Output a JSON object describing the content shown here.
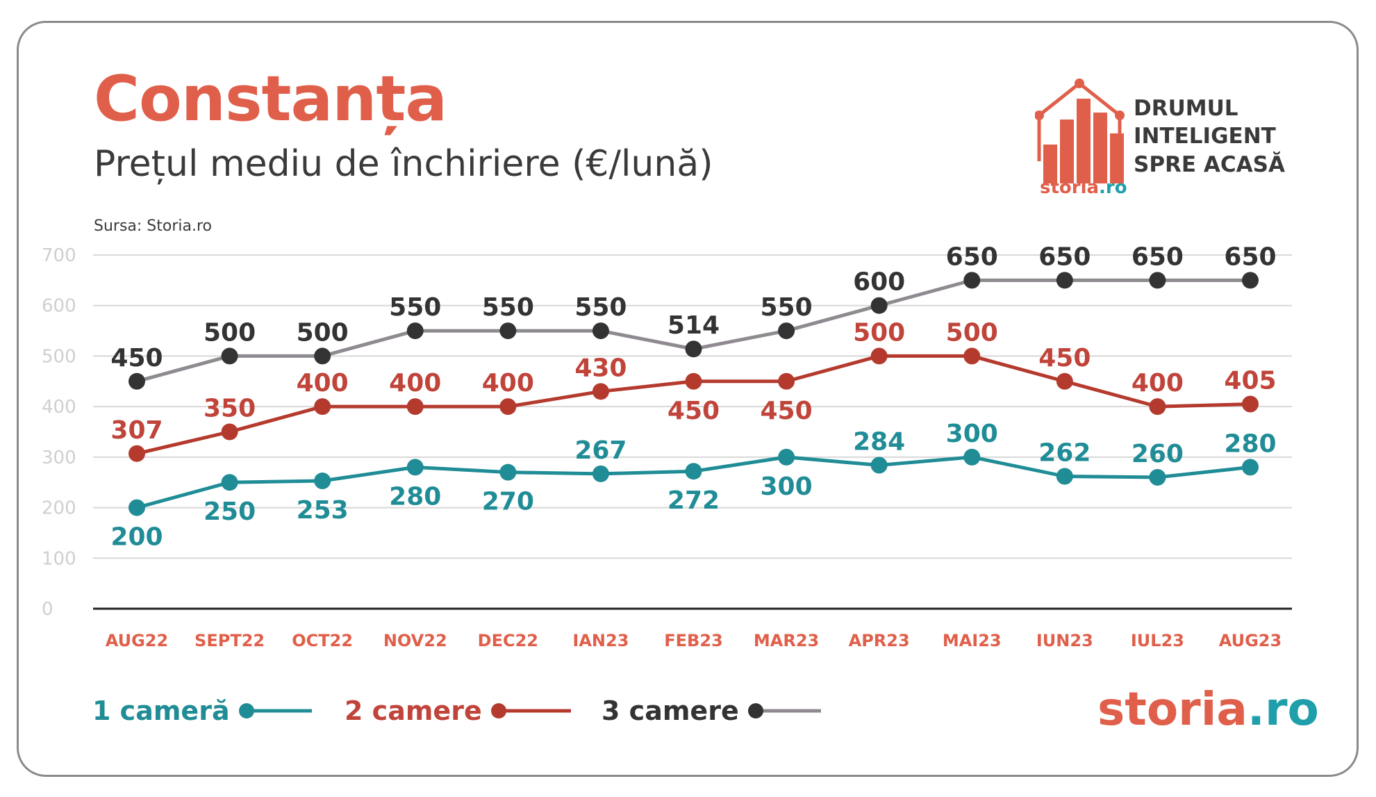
{
  "header": {
    "title": "Constanța",
    "subtitle": "Prețul mediu de închiriere (€/lună)",
    "source": "Sursa:  Storia.ro"
  },
  "logo": {
    "tagline": [
      "DRUMUL",
      "INTELIGENT",
      "SPRE ACASĂ"
    ],
    "small_brand": "storia",
    "small_brand_suffix": ".ro",
    "icon": "house-bar-chart-icon"
  },
  "brand": {
    "name": "storia",
    "suffix": ".ro"
  },
  "colors": {
    "accent": "#e05f4a",
    "teal": "#1f8c96",
    "red": "#b53a2e",
    "dark": "#3a3a3a",
    "gray_line": "#8e8a90",
    "grid": "#d8d8d8",
    "axis_label": "#cfcfcf"
  },
  "chart_data": {
    "type": "line",
    "categories": [
      "AUG22",
      "SEPT22",
      "OCT22",
      "NOV22",
      "DEC22",
      "IAN23",
      "FEB23",
      "MAR23",
      "APR23",
      "MAI23",
      "IUN23",
      "IUL23",
      "AUG23"
    ],
    "ylim": [
      0,
      700
    ],
    "yticks": [
      0,
      100,
      200,
      300,
      400,
      500,
      600,
      700
    ],
    "grid": true,
    "legend_position": "bottom-left",
    "series": [
      {
        "name": "1 cameră",
        "color": "#1f8c96",
        "line_color": "#1f8c96",
        "label_color": "#1f8c96",
        "values": [
          200,
          250,
          253,
          280,
          270,
          267,
          272,
          300,
          284,
          300,
          262,
          260,
          280
        ],
        "label_pos": [
          "below",
          "below",
          "below",
          "below",
          "below",
          "above",
          "below",
          "below",
          "above",
          "above",
          "above",
          "above",
          "above"
        ]
      },
      {
        "name": "2 camere",
        "color": "#b53a2e",
        "line_color": "#b53a2e",
        "label_color": "#c0443a",
        "values": [
          307,
          350,
          400,
          400,
          400,
          430,
          450,
          450,
          500,
          500,
          450,
          400,
          405
        ],
        "label_pos": [
          "above",
          "above",
          "above",
          "above",
          "above",
          "above",
          "below",
          "below",
          "above",
          "above",
          "above",
          "above",
          "above"
        ]
      },
      {
        "name": "3 camere",
        "color": "#333333",
        "line_color": "#8e8a90",
        "label_color": "#333333",
        "values": [
          450,
          500,
          500,
          550,
          550,
          550,
          514,
          550,
          600,
          650,
          650,
          650,
          650
        ],
        "label_pos": [
          "above",
          "above",
          "above",
          "above",
          "above",
          "above",
          "above",
          "above",
          "above",
          "above",
          "above",
          "above",
          "above"
        ]
      }
    ]
  }
}
